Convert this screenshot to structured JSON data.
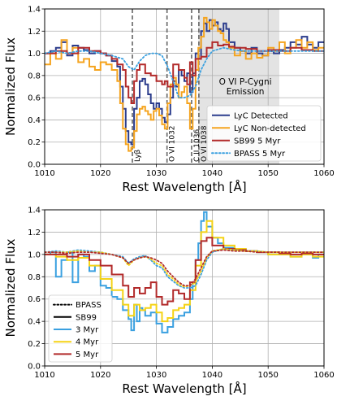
{
  "chart_data": [
    {
      "type": "line",
      "xlim": [
        1010,
        1060
      ],
      "ylim": [
        0.0,
        1.4
      ],
      "xticks": [
        "1010",
        "1020",
        "1030",
        "1040",
        "1050",
        "1060"
      ],
      "yticks": [
        "0.0",
        "0.2",
        "0.4",
        "0.6",
        "0.8",
        "1.0",
        "1.2",
        "1.4"
      ],
      "xlabel": "Rest Wavelength [Å]",
      "ylabel": "Normalized Flux",
      "grid": true,
      "legend": "lower-right",
      "shaded_region": {
        "x0": 1037.5,
        "x1": 1052,
        "label": "O VI P-Cygni Emission",
        "label_lines": [
          "O VI P-Cygni",
          "Emission"
        ],
        "color": "#e3e3e3"
      },
      "lines": [
        {
          "x": 1025.7,
          "label": "Lyβ"
        },
        {
          "x": 1031.9,
          "label": "O VI 1032"
        },
        {
          "x": 1036.3,
          "label": "C II 1036"
        },
        {
          "x": 1037.6,
          "label": "O VI 1038"
        }
      ],
      "series": [
        {
          "name": "LyC Detected",
          "color": "#2b3c8c",
          "style": "step",
          "x": [
            1010,
            1011,
            1012,
            1013,
            1014,
            1015,
            1016,
            1017,
            1018,
            1019,
            1020,
            1021,
            1022,
            1023,
            1023.5,
            1024,
            1024.5,
            1025,
            1025.5,
            1026,
            1026.5,
            1027,
            1027.5,
            1028,
            1028.5,
            1029,
            1029.5,
            1030,
            1030.5,
            1031,
            1031.5,
            1032,
            1032.5,
            1033,
            1033.5,
            1034,
            1034.5,
            1035,
            1035.5,
            1036,
            1036.5,
            1037,
            1037.5,
            1038,
            1038.5,
            1039,
            1039.5,
            1040,
            1040.5,
            1041,
            1041.5,
            1042,
            1042.5,
            1043,
            1044,
            1045,
            1046,
            1047,
            1048,
            1049,
            1050,
            1051,
            1052,
            1053,
            1054,
            1055,
            1056,
            1057,
            1058,
            1059
          ],
          "y": [
            1.0,
            1.02,
            1.05,
            1.1,
            0.98,
            1.07,
            1.05,
            1.03,
            1.0,
            1.02,
            1.0,
            0.98,
            0.93,
            0.88,
            0.7,
            0.5,
            0.3,
            0.2,
            0.18,
            0.5,
            0.6,
            0.75,
            0.77,
            0.72,
            0.63,
            0.55,
            0.5,
            0.55,
            0.5,
            0.42,
            0.38,
            0.45,
            0.6,
            0.75,
            0.7,
            0.85,
            0.8,
            0.75,
            0.82,
            0.65,
            0.82,
            1.0,
            0.95,
            1.2,
            1.27,
            1.2,
            1.3,
            1.25,
            1.28,
            1.22,
            1.2,
            1.27,
            1.22,
            1.1,
            1.05,
            1.02,
            1.0,
            1.05,
            1.0,
            0.98,
            1.02,
            1.0,
            1.03,
            1.05,
            1.1,
            1.08,
            1.15,
            1.08,
            1.05,
            1.1
          ]
        },
        {
          "name": "LyC Non-detected",
          "color": "#f5a41f",
          "style": "step",
          "x": [
            1010,
            1011,
            1012,
            1013,
            1014,
            1015,
            1016,
            1017,
            1018,
            1019,
            1020,
            1021,
            1022,
            1023,
            1023.5,
            1024,
            1024.5,
            1025,
            1025.5,
            1026,
            1026.5,
            1027,
            1027.5,
            1028,
            1028.5,
            1029,
            1029.5,
            1030,
            1030.5,
            1031,
            1031.5,
            1032,
            1032.5,
            1033,
            1033.5,
            1034,
            1034.5,
            1035,
            1035.5,
            1036,
            1036.5,
            1037,
            1037.5,
            1038,
            1038.5,
            1039,
            1039.5,
            1040,
            1040.5,
            1041,
            1041.5,
            1042,
            1042.5,
            1043,
            1044,
            1045,
            1046,
            1047,
            1048,
            1049,
            1050,
            1051,
            1052,
            1053,
            1054,
            1055,
            1056,
            1057,
            1058,
            1059
          ],
          "y": [
            0.9,
            1.0,
            0.95,
            1.12,
            1.0,
            1.05,
            0.92,
            0.95,
            0.88,
            0.85,
            0.92,
            0.9,
            0.85,
            0.75,
            0.55,
            0.32,
            0.18,
            0.12,
            0.15,
            0.3,
            0.45,
            0.5,
            0.52,
            0.48,
            0.45,
            0.4,
            0.48,
            0.5,
            0.44,
            0.36,
            0.32,
            0.55,
            0.72,
            0.78,
            0.72,
            0.6,
            0.65,
            0.7,
            0.55,
            0.32,
            0.5,
            0.85,
            1.05,
            1.15,
            1.32,
            1.28,
            1.22,
            1.3,
            1.25,
            1.2,
            1.18,
            1.12,
            1.1,
            1.05,
            0.98,
            1.02,
            0.95,
            1.0,
            0.96,
            0.98,
            1.05,
            1.02,
            1.1,
            1.0,
            1.05,
            1.12,
            1.05,
            1.1,
            1.03,
            1.05
          ]
        },
        {
          "name": "SB99 5 Myr",
          "color": "#b22a2a",
          "style": "step",
          "x": [
            1010,
            1012,
            1014,
            1016,
            1018,
            1020,
            1021,
            1022,
            1023,
            1024,
            1024.5,
            1025,
            1025.5,
            1026,
            1026.5,
            1027,
            1028,
            1029,
            1030,
            1031,
            1031.5,
            1032,
            1033,
            1034,
            1035,
            1035.5,
            1036,
            1036.5,
            1037,
            1038,
            1039,
            1040,
            1041,
            1042,
            1043,
            1044,
            1046,
            1048,
            1050,
            1052,
            1054,
            1056,
            1058
          ],
          "y": [
            1.0,
            1.02,
            1.0,
            1.05,
            1.02,
            1.0,
            0.98,
            0.95,
            0.9,
            0.85,
            0.7,
            0.6,
            0.55,
            0.75,
            0.85,
            0.9,
            0.82,
            0.8,
            0.75,
            0.72,
            0.75,
            0.7,
            0.9,
            0.85,
            0.78,
            0.72,
            0.92,
            0.8,
            0.95,
            0.97,
            1.05,
            1.1,
            1.07,
            1.08,
            1.06,
            1.05,
            1.04,
            1.02,
            1.03,
            1.02,
            1.05,
            1.03,
            1.02
          ]
        },
        {
          "name": "BPASS 5 Myr",
          "color": "#3aa0e0",
          "style": "dotted",
          "x": [
            1010,
            1012,
            1014,
            1016,
            1018,
            1020,
            1022,
            1024,
            1025,
            1026,
            1027,
            1028,
            1029,
            1030,
            1031,
            1032,
            1033,
            1034,
            1035,
            1036,
            1037,
            1038,
            1039,
            1040,
            1042,
            1044,
            1046,
            1048,
            1050,
            1052,
            1054,
            1056,
            1058,
            1060
          ],
          "y": [
            1.0,
            1.02,
            1.0,
            1.02,
            1.02,
            1.0,
            0.98,
            0.95,
            0.88,
            0.85,
            0.93,
            0.98,
            1.0,
            1.0,
            0.98,
            0.88,
            0.75,
            0.6,
            0.6,
            0.62,
            0.7,
            0.85,
            0.95,
            1.02,
            1.05,
            1.03,
            1.02,
            1.02,
            1.02,
            1.02,
            1.02,
            1.02,
            1.02,
            1.02
          ]
        }
      ]
    },
    {
      "type": "line",
      "xlim": [
        1010,
        1060
      ],
      "ylim": [
        0.0,
        1.4
      ],
      "xticks": [
        "1010",
        "1020",
        "1030",
        "1040",
        "1050",
        "1060"
      ],
      "yticks": [
        "0.0",
        "0.2",
        "0.4",
        "0.6",
        "0.8",
        "1.0",
        "1.2",
        "1.4"
      ],
      "xlabel": "Rest Wavelength [Å]",
      "ylabel": "Normalized Flux",
      "grid": true,
      "legend": "lower-left",
      "legend_entries": [
        {
          "name": "BPASS",
          "color": "#000000",
          "style": "dotted"
        },
        {
          "name": "SB99",
          "color": "#000000",
          "style": "solid"
        },
        {
          "name": "3 Myr",
          "color": "#3aa0e0",
          "style": "solid"
        },
        {
          "name": "4 Myr",
          "color": "#f5d315",
          "style": "solid"
        },
        {
          "name": "5 Myr",
          "color": "#b22a2a",
          "style": "solid"
        }
      ],
      "series": [
        {
          "name": "SB99 3 Myr",
          "color": "#3aa0e0",
          "style": "step",
          "x": [
            1010,
            1011,
            1012,
            1013,
            1014,
            1015,
            1016,
            1017,
            1018,
            1019,
            1020,
            1021,
            1022,
            1023,
            1024,
            1025,
            1025.5,
            1026,
            1026.5,
            1027,
            1027.5,
            1028,
            1029,
            1030,
            1031,
            1032,
            1033,
            1034,
            1035,
            1036,
            1036.5,
            1037,
            1037.5,
            1038,
            1038.5,
            1039,
            1040,
            1041,
            1042,
            1044,
            1046,
            1048,
            1050,
            1052,
            1054,
            1056,
            1058,
            1059
          ],
          "y": [
            1.0,
            1.02,
            0.8,
            0.95,
            1.02,
            0.75,
            1.0,
            0.98,
            0.85,
            0.9,
            0.72,
            0.7,
            0.62,
            0.6,
            0.5,
            0.42,
            0.32,
            0.55,
            0.4,
            0.52,
            0.5,
            0.45,
            0.48,
            0.38,
            0.3,
            0.35,
            0.42,
            0.45,
            0.48,
            0.6,
            0.75,
            0.95,
            1.1,
            1.3,
            1.38,
            1.25,
            1.15,
            1.1,
            1.06,
            1.05,
            1.03,
            1.02,
            1.0,
            1.0,
            0.98,
            1.0,
            0.97,
            1.0
          ]
        },
        {
          "name": "SB99 4 Myr",
          "color": "#f5d315",
          "style": "step",
          "x": [
            1010,
            1012,
            1014,
            1016,
            1018,
            1020,
            1022,
            1024,
            1025,
            1026,
            1027,
            1028,
            1029,
            1030,
            1031,
            1032,
            1033,
            1034,
            1035,
            1036,
            1037,
            1038,
            1039,
            1040,
            1042,
            1044,
            1046,
            1048,
            1050,
            1052,
            1054,
            1056,
            1058
          ],
          "y": [
            1.0,
            0.98,
            0.95,
            0.97,
            0.9,
            0.78,
            0.68,
            0.55,
            0.45,
            0.55,
            0.5,
            0.52,
            0.55,
            0.48,
            0.4,
            0.43,
            0.5,
            0.52,
            0.55,
            0.68,
            0.9,
            1.2,
            1.3,
            1.15,
            1.08,
            1.05,
            1.03,
            1.02,
            1.0,
            1.0,
            0.98,
            1.0,
            0.98
          ]
        },
        {
          "name": "SB99 5 Myr",
          "color": "#b22a2a",
          "style": "step",
          "x": [
            1010,
            1012,
            1014,
            1016,
            1018,
            1020,
            1022,
            1024,
            1025,
            1026,
            1027,
            1028,
            1029,
            1030,
            1031,
            1032,
            1033,
            1034,
            1035,
            1036,
            1037,
            1038,
            1039,
            1040,
            1042,
            1044,
            1046,
            1048,
            1050,
            1052,
            1054,
            1056,
            1058
          ],
          "y": [
            1.0,
            1.0,
            0.98,
            1.0,
            0.95,
            0.9,
            0.82,
            0.72,
            0.62,
            0.7,
            0.65,
            0.7,
            0.75,
            0.62,
            0.55,
            0.58,
            0.68,
            0.65,
            0.6,
            0.75,
            0.95,
            1.12,
            1.15,
            1.08,
            1.05,
            1.04,
            1.03,
            1.02,
            1.02,
            1.01,
            1.0,
            1.01,
            1.0
          ]
        },
        {
          "name": "BPASS 3 Myr",
          "color": "#3aa0e0",
          "style": "dotted",
          "x": [
            1010,
            1012,
            1014,
            1016,
            1018,
            1020,
            1022,
            1024,
            1025,
            1026,
            1027,
            1028,
            1029,
            1030,
            1031,
            1032,
            1033,
            1034,
            1035,
            1036,
            1037,
            1038,
            1039,
            1040,
            1042,
            1044,
            1046,
            1048,
            1050,
            1052,
            1054,
            1056,
            1058,
            1060
          ],
          "y": [
            1.02,
            1.03,
            1.02,
            1.04,
            1.03,
            1.02,
            1.0,
            0.98,
            0.92,
            0.96,
            0.98,
            0.99,
            0.95,
            0.9,
            0.88,
            0.8,
            0.76,
            0.72,
            0.7,
            0.7,
            0.72,
            0.82,
            0.95,
            1.02,
            1.05,
            1.04,
            1.03,
            1.03,
            1.02,
            1.02,
            1.02,
            1.02,
            1.02,
            1.02
          ]
        },
        {
          "name": "BPASS 4 Myr",
          "color": "#f5d315",
          "style": "dotted",
          "x": [
            1010,
            1012,
            1014,
            1016,
            1018,
            1020,
            1022,
            1024,
            1025,
            1026,
            1027,
            1028,
            1029,
            1030,
            1031,
            1032,
            1033,
            1034,
            1035,
            1036,
            1037,
            1038,
            1039,
            1040,
            1042,
            1044,
            1046,
            1048,
            1050,
            1052,
            1054,
            1056,
            1058,
            1060
          ],
          "y": [
            1.02,
            1.02,
            1.02,
            1.03,
            1.02,
            1.02,
            1.0,
            0.97,
            0.9,
            0.95,
            0.97,
            0.98,
            0.96,
            0.92,
            0.9,
            0.82,
            0.78,
            0.73,
            0.71,
            0.72,
            0.75,
            0.85,
            0.97,
            1.03,
            1.05,
            1.04,
            1.03,
            1.03,
            1.02,
            1.02,
            1.02,
            1.02,
            1.02,
            1.02
          ]
        },
        {
          "name": "BPASS 5 Myr",
          "color": "#b22a2a",
          "style": "dotted",
          "x": [
            1010,
            1012,
            1014,
            1016,
            1018,
            1020,
            1022,
            1024,
            1025,
            1026,
            1027,
            1028,
            1029,
            1030,
            1031,
            1032,
            1033,
            1034,
            1035,
            1036,
            1037,
            1038,
            1039,
            1040,
            1042,
            1044,
            1046,
            1048,
            1050,
            1052,
            1054,
            1056,
            1058,
            1060
          ],
          "y": [
            1.02,
            1.02,
            1.01,
            1.02,
            1.02,
            1.01,
            1.0,
            0.97,
            0.92,
            0.95,
            0.97,
            0.98,
            0.97,
            0.95,
            0.92,
            0.85,
            0.8,
            0.75,
            0.72,
            0.72,
            0.78,
            0.88,
            0.98,
            1.03,
            1.04,
            1.03,
            1.03,
            1.02,
            1.02,
            1.02,
            1.02,
            1.02,
            1.02,
            1.02
          ]
        }
      ]
    }
  ]
}
